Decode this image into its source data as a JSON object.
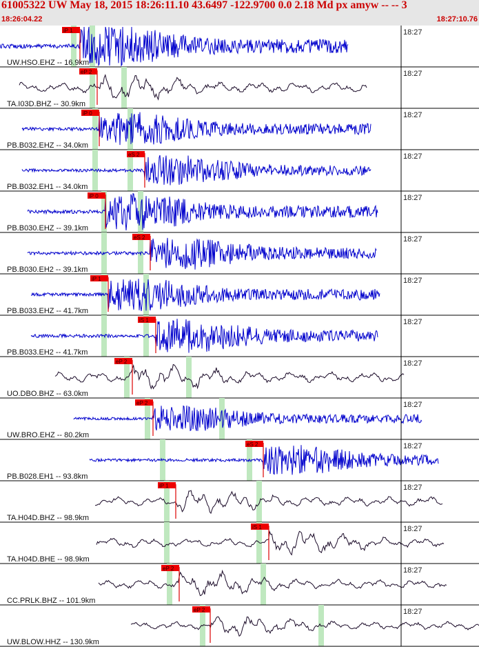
{
  "header": {
    "title": "61005322 UW May 18, 2015 18:26:11.10    43.6497 -122.9700   0.0 2.18 Md px amyw -- --    3",
    "start_time": "18:26:04.22",
    "end_time": "18:27:10.76"
  },
  "colors": {
    "header_bg": "#e6e6e6",
    "title": "#cc0000",
    "pick_box": "#ee0000",
    "pick_line": "#dd0000",
    "shading": "#bfe8bf",
    "trace_blue": "#0000cc",
    "trace_dark": "#1a0a28"
  },
  "panels": [
    {
      "label": "UW.HSO.EHZ -- 16.9km",
      "time": "18:27",
      "pick": "iP 1",
      "color": "blue"
    },
    {
      "label": "TA.I03D.BHZ -- 30.9km",
      "time": "18:27",
      "pick": "eP 2",
      "color": "dark"
    },
    {
      "label": "PB.B032.EHZ -- 34.0km",
      "time": "18:27",
      "pick": "iP 0",
      "color": "blue"
    },
    {
      "label": "PB.B032.EH1 -- 34.0km",
      "time": "18:27",
      "pick": "eS 2",
      "color": "blue"
    },
    {
      "label": "PB.B030.EHZ -- 39.1km",
      "time": "18:27",
      "pick": "iP 0",
      "color": "blue"
    },
    {
      "label": "PB.B030.EH2 -- 39.1km",
      "time": "18:27",
      "pick": "eS 2",
      "color": "blue"
    },
    {
      "label": "PB.B033.EHZ -- 41.7km",
      "time": "18:27",
      "pick": "iP 1",
      "color": "blue"
    },
    {
      "label": "PB.B033.EH2 -- 41.7km",
      "time": "18:27",
      "pick": "iS 1",
      "color": "blue"
    },
    {
      "label": "UO.DBO.BHZ -- 63.0km",
      "time": "18:27",
      "pick": "eP 2",
      "color": "dark"
    },
    {
      "label": "UW.BRO.EHZ -- 80.2km",
      "time": "18:27",
      "pick": "eP 2",
      "color": "blue"
    },
    {
      "label": "PB.B028.EH1 -- 93.8km",
      "time": "18:27",
      "pick": "eS 2",
      "color": "blue"
    },
    {
      "label": "TA.H04D.BHZ -- 98.9km",
      "time": "18:27",
      "pick": "iP 1",
      "color": "dark"
    },
    {
      "label": "TA.H04D.BHE -- 98.9km",
      "time": "18:27",
      "pick": "iS 1",
      "color": "dark"
    },
    {
      "label": "CC.PRLK.BHZ -- 101.9km",
      "time": "18:27",
      "pick": "eP 2",
      "color": "dark"
    },
    {
      "label": "UW.BLOW.HHZ -- 130.9km",
      "time": "18:27",
      "pick": "eP 2",
      "color": "dark"
    }
  ]
}
